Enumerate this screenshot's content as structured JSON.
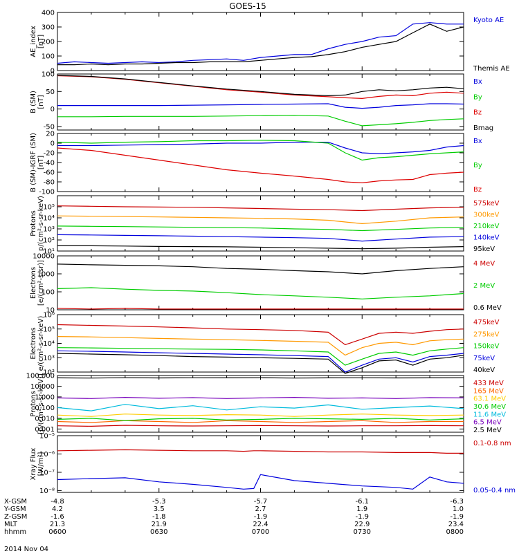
{
  "title": "GOES-15",
  "footer": {
    "row_labels": [
      "X-GSM",
      "Y-GSM",
      "Z-GSM",
      "MLT",
      "hhmm"
    ],
    "columns": [
      [
        "-4.8",
        "4.2",
        "-1.6",
        "21.3",
        "0600"
      ],
      [
        "-5.3",
        "3.5",
        "-1.8",
        "21.9",
        "0630"
      ],
      [
        "-5.7",
        "2.7",
        "-1.9",
        "22.4",
        "0700"
      ],
      [
        "-6.1",
        "1.9",
        "-1.9",
        "22.9",
        "0730"
      ],
      [
        "-6.3",
        "1.0",
        "-1.9",
        "23.4",
        "0800"
      ]
    ],
    "date": "2014 Nov 04"
  },
  "chart_data": [
    {
      "type": "line",
      "id": "ae",
      "ylabel": [
        "AE_index",
        "[nT]"
      ],
      "ylim": [
        0,
        400
      ],
      "yticks": [
        {
          "v": 0,
          "label": "0"
        },
        {
          "v": 100,
          "label": "100"
        },
        {
          "v": 200,
          "label": "200"
        },
        {
          "v": 300,
          "label": "300"
        },
        {
          "v": 400,
          "label": "400"
        }
      ],
      "x": [
        0,
        5,
        10,
        15,
        20,
        25,
        30,
        35,
        40,
        45,
        50,
        55,
        60,
        65,
        70,
        75,
        80,
        85,
        90,
        95,
        100,
        105,
        110,
        115,
        120
      ],
      "series": [
        {
          "name": "Kyoto AE",
          "color": "#0000dd",
          "values": [
            50,
            60,
            55,
            50,
            55,
            60,
            55,
            60,
            70,
            75,
            80,
            70,
            90,
            100,
            110,
            110,
            150,
            180,
            200,
            230,
            240,
            320,
            330,
            320,
            320
          ]
        },
        {
          "name": "Themis AE",
          "color": "#000000",
          "values": [
            40,
            40,
            45,
            40,
            45,
            45,
            50,
            55,
            55,
            60,
            60,
            60,
            70,
            80,
            90,
            95,
            110,
            130,
            160,
            180,
            200,
            260,
            320,
            270,
            300
          ]
        }
      ]
    },
    {
      "type": "line",
      "id": "bsm",
      "ylabel": [
        "B (SM)",
        "[nT]"
      ],
      "ylim": [
        -60,
        100
      ],
      "yticks": [
        {
          "v": -50,
          "label": "-50"
        },
        {
          "v": 0,
          "label": "0"
        },
        {
          "v": 50,
          "label": "50"
        },
        {
          "v": 100,
          "label": "100"
        }
      ],
      "x": [
        0,
        10,
        20,
        30,
        40,
        50,
        60,
        70,
        80,
        85,
        90,
        95,
        100,
        105,
        110,
        115,
        120
      ],
      "series": [
        {
          "name": "Bx",
          "color": "#0000dd",
          "values": [
            10,
            10,
            10,
            10,
            11,
            12,
            13,
            14,
            15,
            5,
            2,
            5,
            10,
            12,
            15,
            15,
            14
          ]
        },
        {
          "name": "By",
          "color": "#00cc00",
          "values": [
            -22,
            -22,
            -21,
            -21,
            -21,
            -20,
            -19,
            -18,
            -20,
            -35,
            -48,
            -45,
            -42,
            -38,
            -33,
            -30,
            -28
          ]
        },
        {
          "name": "Bz",
          "color": "#dd0000",
          "values": [
            95,
            92,
            85,
            75,
            65,
            55,
            48,
            40,
            35,
            32,
            30,
            36,
            40,
            38,
            45,
            48,
            45
          ]
        },
        {
          "name": "Bmag",
          "color": "#000000",
          "values": [
            96,
            93,
            86,
            76,
            66,
            57,
            50,
            42,
            38,
            40,
            50,
            55,
            52,
            55,
            60,
            62,
            58
          ]
        }
      ]
    },
    {
      "type": "line",
      "id": "bdiff",
      "ylabel": [
        "B (SM)-IGRF (SM)",
        "[nT]"
      ],
      "ylim": [
        -100,
        20
      ],
      "yticks": [
        {
          "v": 20,
          "label": "20"
        },
        {
          "v": 0,
          "label": "0"
        },
        {
          "v": -20,
          "label": "-20"
        },
        {
          "v": -40,
          "label": "-40"
        },
        {
          "v": -60,
          "label": "-60"
        },
        {
          "v": -80,
          "label": "-80"
        },
        {
          "v": -100,
          "label": "-100"
        }
      ],
      "x": [
        0,
        10,
        20,
        30,
        40,
        50,
        60,
        70,
        80,
        85,
        90,
        95,
        100,
        105,
        110,
        115,
        120
      ],
      "series": [
        {
          "name": "Bx",
          "color": "#0000dd",
          "values": [
            -5,
            -5,
            -4,
            -3,
            -2,
            0,
            0,
            2,
            2,
            -10,
            -20,
            -22,
            -20,
            -18,
            -15,
            -8,
            -5
          ]
        },
        {
          "name": "By",
          "color": "#00cc00",
          "values": [
            2,
            0,
            2,
            3,
            5,
            5,
            6,
            5,
            0,
            -20,
            -35,
            -30,
            -28,
            -25,
            -22,
            -20,
            -18
          ]
        },
        {
          "name": "Bz",
          "color": "#dd0000",
          "values": [
            -10,
            -15,
            -25,
            -35,
            -45,
            -55,
            -62,
            -68,
            -75,
            -80,
            -82,
            -78,
            -76,
            -75,
            -65,
            -62,
            -60
          ]
        }
      ]
    },
    {
      "type": "line",
      "id": "protons1",
      "log": true,
      "ylabel": [
        "Protons",
        "p/(cm²-s-sr-keV)"
      ],
      "ylim": [
        10,
        1000000
      ],
      "yticks": [
        {
          "v": 10,
          "label": "10¹"
        },
        {
          "v": 100,
          "label": "10²"
        },
        {
          "v": 1000,
          "label": "10³"
        },
        {
          "v": 10000,
          "label": "10⁴"
        },
        {
          "v": 100000,
          "label": "10⁵"
        }
      ],
      "x": [
        0,
        10,
        20,
        30,
        40,
        50,
        60,
        70,
        80,
        90,
        100,
        110,
        120
      ],
      "series": [
        {
          "name": "575keV",
          "color": "#cc0000",
          "values": [
            120000,
            110000,
            100000,
            95000,
            90000,
            80000,
            70000,
            60000,
            55000,
            45000,
            60000,
            80000,
            90000
          ]
        },
        {
          "name": "300keV",
          "color": "#ff9900",
          "values": [
            15000,
            14000,
            13000,
            12000,
            11000,
            10000,
            9000,
            8000,
            6000,
            3000,
            5000,
            10000,
            12000
          ]
        },
        {
          "name": "210keV",
          "color": "#00cc00",
          "values": [
            1800,
            1700,
            1600,
            1500,
            1400,
            1300,
            1200,
            1000,
            900,
            700,
            900,
            1200,
            1400
          ]
        },
        {
          "name": "140keV",
          "color": "#0000dd",
          "values": [
            300,
            280,
            260,
            240,
            220,
            200,
            180,
            160,
            140,
            80,
            120,
            180,
            200
          ]
        },
        {
          "name": "95keV",
          "color": "#000000",
          "values": [
            30,
            30,
            28,
            26,
            25,
            24,
            22,
            20,
            18,
            16,
            18,
            22,
            25
          ]
        }
      ]
    },
    {
      "type": "line",
      "id": "electrons1",
      "log": true,
      "ylabel": [
        "Electrons",
        "[e/(cm²-s-sr)]"
      ],
      "ylim": [
        10,
        10000
      ],
      "yticks": [
        {
          "v": 10,
          "label": "10"
        },
        {
          "v": 100,
          "label": "100"
        },
        {
          "v": 1000,
          "label": "1000"
        },
        {
          "v": 10000,
          "label": "10000"
        }
      ],
      "x": [
        0,
        10,
        20,
        30,
        40,
        50,
        60,
        70,
        80,
        90,
        100,
        110,
        120
      ],
      "series": [
        {
          "name": "4 MeV",
          "color": "#cc0000",
          "values": [
            12,
            11,
            12,
            11,
            11,
            11,
            11,
            11,
            11,
            11,
            11,
            11,
            11
          ]
        },
        {
          "name": "2 MeV",
          "color": "#00cc00",
          "values": [
            150,
            170,
            140,
            120,
            110,
            90,
            70,
            60,
            50,
            40,
            50,
            60,
            80
          ]
        },
        {
          "name": "0.6 MeV",
          "color": "#000000",
          "values": [
            3500,
            3200,
            3000,
            2800,
            2500,
            2000,
            1800,
            1500,
            1300,
            1000,
            1500,
            2000,
            2500
          ]
        }
      ]
    },
    {
      "type": "line",
      "id": "electrons2",
      "log": true,
      "ylabel": [
        "Electrons",
        "e/(cm²-s-sr-keV)"
      ],
      "ylim": [
        100,
        1000000
      ],
      "yticks": [
        {
          "v": 100,
          "label": "10²"
        },
        {
          "v": 1000,
          "label": "10³"
        },
        {
          "v": 10000,
          "label": "10⁴"
        },
        {
          "v": 100000,
          "label": "10⁵"
        },
        {
          "v": 1000000,
          "label": "10⁶"
        }
      ],
      "x": [
        0,
        10,
        20,
        30,
        40,
        50,
        60,
        70,
        80,
        85,
        90,
        95,
        100,
        105,
        110,
        115,
        120
      ],
      "series": [
        {
          "name": "475keV",
          "color": "#cc0000",
          "values": [
            200000,
            180000,
            160000,
            140000,
            120000,
            100000,
            90000,
            80000,
            60000,
            8000,
            20000,
            50000,
            60000,
            50000,
            70000,
            90000,
            100000
          ]
        },
        {
          "name": "275keV",
          "color": "#ff9900",
          "values": [
            30000,
            28000,
            25000,
            22000,
            20000,
            18000,
            16000,
            14000,
            12000,
            1500,
            5000,
            10000,
            12000,
            8000,
            15000,
            18000,
            20000
          ]
        },
        {
          "name": "150keV",
          "color": "#00cc00",
          "values": [
            5000,
            4800,
            4500,
            4200,
            4000,
            3800,
            3500,
            3000,
            2500,
            300,
            800,
            2000,
            2500,
            1500,
            3000,
            4000,
            5000
          ]
        },
        {
          "name": "75keV",
          "color": "#0000dd",
          "values": [
            3000,
            2800,
            2500,
            2200,
            2000,
            1800,
            1600,
            1400,
            1200,
            100,
            300,
            800,
            1000,
            500,
            1200,
            1500,
            2000
          ]
        },
        {
          "name": "40keV",
          "color": "#000000",
          "values": [
            2000,
            1800,
            1600,
            1400,
            1200,
            1100,
            1000,
            900,
            800,
            80,
            200,
            600,
            700,
            300,
            800,
            1000,
            1500
          ]
        }
      ]
    },
    {
      "type": "line",
      "id": "protons2",
      "log": true,
      "ylabel": [
        "Protons",
        "[p/(cm²-s-sr-keV)]"
      ],
      "ylim": [
        0.0005,
        100
      ],
      "yticks": [
        {
          "v": 0.001,
          "label": "0.001"
        },
        {
          "v": 0.01,
          "label": "0.010"
        },
        {
          "v": 0.1,
          "label": "0.100"
        },
        {
          "v": 1,
          "label": "1.000"
        },
        {
          "v": 10,
          "label": "10.000"
        },
        {
          "v": 100,
          "label": "100.000"
        }
      ],
      "x": [
        0,
        10,
        20,
        30,
        40,
        50,
        60,
        70,
        80,
        90,
        100,
        110,
        120
      ],
      "series": [
        {
          "name": "433 MeV",
          "color": "#cc0000",
          "values": [
            0.002,
            0.0018,
            0.0022,
            0.002,
            0.0019,
            0.002,
            0.0021,
            0.002,
            0.0019,
            0.002,
            0.002,
            0.0021,
            0.002
          ]
        },
        {
          "name": "165 MeV",
          "color": "#ff6600",
          "values": [
            0.005,
            0.004,
            0.006,
            0.005,
            0.004,
            0.006,
            0.005,
            0.004,
            0.005,
            0.006,
            0.004,
            0.005,
            0.005
          ]
        },
        {
          "name": "63.1 MeV",
          "color": "#ffcc00",
          "values": [
            0.02,
            0.015,
            0.025,
            0.02,
            0.018,
            0.022,
            0.02,
            0.015,
            0.02,
            0.025,
            0.02,
            0.018,
            0.02
          ]
        },
        {
          "name": "30.6 MeV",
          "color": "#00cc00",
          "values": [
            0.008,
            0.01,
            0.006,
            0.009,
            0.01,
            0.007,
            0.008,
            0.01,
            0.009,
            0.008,
            0.01,
            0.007,
            0.009
          ]
        },
        {
          "name": "11.6 MeV",
          "color": "#00bbdd",
          "values": [
            0.1,
            0.05,
            0.2,
            0.08,
            0.15,
            0.06,
            0.12,
            0.09,
            0.18,
            0.07,
            0.1,
            0.14,
            0.08
          ]
        },
        {
          "name": "6.5 MeV",
          "color": "#7700bb",
          "values": [
            0.8,
            0.7,
            0.9,
            0.75,
            0.85,
            0.7,
            0.8,
            0.9,
            0.75,
            0.8,
            0.7,
            0.85,
            0.8
          ]
        },
        {
          "name": "2.5 MeV",
          "color": "#000000",
          "values": [
            60,
            58,
            62,
            59,
            61,
            60,
            62,
            58,
            60,
            61,
            59,
            60,
            62
          ]
        }
      ]
    },
    {
      "type": "line",
      "id": "xray",
      "log": true,
      "ylabel": [
        "Xray Flux",
        "[W/m²]"
      ],
      "ylim": [
        8e-09,
        1e-05
      ],
      "yticks": [
        {
          "v": 1e-08,
          "label": "10⁻⁸"
        },
        {
          "v": 1e-07,
          "label": "10⁻⁷"
        },
        {
          "v": 1e-06,
          "label": "10⁻⁶"
        },
        {
          "v": 1e-05,
          "label": "10⁻⁵"
        }
      ],
      "x": [
        0,
        10,
        20,
        30,
        40,
        50,
        55,
        58,
        60,
        70,
        80,
        90,
        100,
        105,
        110,
        115,
        120
      ],
      "series": [
        {
          "name": "0.1-0.8 nm",
          "color": "#cc0000",
          "values": [
            1.5e-06,
            1.6e-06,
            1.7e-06,
            1.6e-06,
            1.5e-06,
            1.5e-06,
            1.4e-06,
            1.5e-06,
            1.5e-06,
            1.4e-06,
            1.3e-06,
            1.3e-06,
            1.2e-06,
            1.2e-06,
            1.2e-06,
            1.1e-06,
            1.1e-06
          ]
        },
        {
          "name": "0.05-0.4 nm",
          "color": "#0000dd",
          "values": [
            4e-08,
            4.5e-08,
            5e-08,
            3e-08,
            2.2e-08,
            1.5e-08,
            1.2e-08,
            1.3e-08,
            7.5e-08,
            3.5e-08,
            2.5e-08,
            1.8e-08,
            1.5e-08,
            1.2e-08,
            5.5e-08,
            3e-08,
            2.5e-08
          ]
        }
      ]
    }
  ]
}
